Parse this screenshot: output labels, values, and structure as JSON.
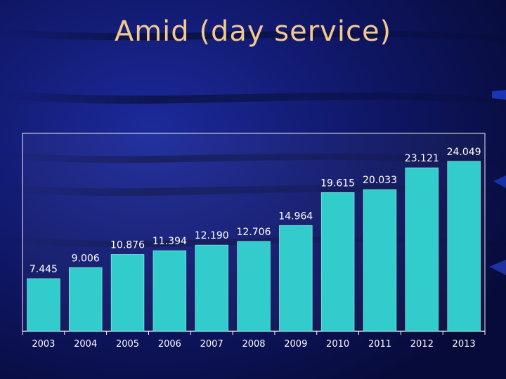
{
  "slide": {
    "title": "Amid (day service)"
  },
  "colors": {
    "background": "#0a0f4e",
    "title": "#f3c98f",
    "bar": "#33cccc",
    "bar_edge": "#7fe3e3",
    "label_text": "#ffffff",
    "plot_area": "#ffffff",
    "tick_text": "#ffffff"
  },
  "chart_data": {
    "type": "bar",
    "title": "Amid (day service)",
    "categories": [
      "2003",
      "2004",
      "2005",
      "2006",
      "2007",
      "2008",
      "2009",
      "2010",
      "2011",
      "2012",
      "2013"
    ],
    "values": [
      7.445,
      9.006,
      10.876,
      11.394,
      12.19,
      12.706,
      14.964,
      19.615,
      20.033,
      23.121,
      24.049
    ],
    "data_labels": [
      "7.445",
      "9.006",
      "10.876",
      "11.394",
      "12.190",
      "12.706",
      "14.964",
      "19.615",
      "20.033",
      "23.121",
      "24.049"
    ],
    "xlabel": "",
    "ylabel": "",
    "ylim": [
      0,
      28
    ],
    "grid": false,
    "legend": "none"
  }
}
